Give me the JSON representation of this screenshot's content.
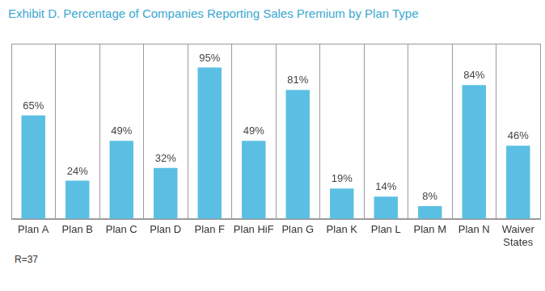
{
  "chart_data": {
    "type": "bar",
    "title": "Exhibit D. Percentage of Companies Reporting Sales Premium by Plan Type",
    "categories": [
      "Plan A",
      "Plan B",
      "Plan C",
      "Plan D",
      "Plan F",
      "Plan HiF",
      "Plan G",
      "Plan K",
      "Plan L",
      "Plan M",
      "Plan N",
      "Waiver States"
    ],
    "values": [
      65,
      24,
      49,
      32,
      95,
      49,
      81,
      19,
      14,
      8,
      84,
      46
    ],
    "value_labels": [
      "65%",
      "24%",
      "49%",
      "32%",
      "95%",
      "49%",
      "81%",
      "19%",
      "14%",
      "8%",
      "84%",
      "46%"
    ],
    "data_labels": true,
    "color": "#5bbfe4",
    "ylim": [
      0,
      110
    ],
    "tick_labels": "x",
    "grid": "x",
    "annotations": [
      "R=37"
    ]
  }
}
